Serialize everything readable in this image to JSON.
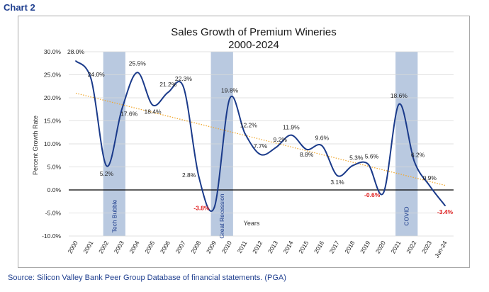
{
  "page_label": "Chart 2",
  "source_note": "Source: Silicon Valley Bank Peer Group Database of financial statements. (PGA)",
  "chart_data": {
    "type": "line",
    "title": "Sales Growth of Premium Wineries",
    "subtitle": "2000-2024",
    "xlabel": "Years",
    "ylabel": "Percent Growth Rate",
    "ylim": [
      -10,
      30
    ],
    "yticks": [
      "-10.0%",
      "-5.0%",
      "0.0%",
      "5.0%",
      "10.0%",
      "15.0%",
      "20.0%",
      "25.0%",
      "30.0%"
    ],
    "ytick_values": [
      -10,
      -5,
      0,
      5,
      10,
      15,
      20,
      25,
      30
    ],
    "categories": [
      "2000",
      "2001",
      "2002",
      "2003",
      "2004",
      "2005",
      "2006",
      "2007",
      "2008",
      "2009",
      "2010",
      "2011",
      "2012",
      "2013",
      "2014",
      "2015",
      "2016",
      "2017",
      "2018",
      "2019",
      "2020",
      "2021",
      "2022",
      "2023",
      "Jun-24"
    ],
    "series": [
      {
        "name": "Sales Growth",
        "color": "#1a3a8a",
        "values": [
          28.0,
          24.0,
          5.2,
          17.6,
          25.5,
          18.4,
          21.2,
          22.3,
          2.8,
          -3.8,
          19.8,
          12.2,
          7.7,
          9.2,
          11.9,
          8.8,
          9.6,
          3.1,
          5.3,
          5.6,
          -0.6,
          18.6,
          6.2,
          0.9,
          -3.4
        ]
      }
    ],
    "data_labels": [
      "28.0%",
      "24.0%",
      "5.2%",
      "17.6%",
      "25.5%",
      "18.4%",
      "21.2%",
      "22.3%",
      "2.8%",
      "-3.8%",
      "19.8%",
      "12.2%",
      "7.7%",
      "9.2%",
      "11.9%",
      "8.8%",
      "9.6%",
      "3.1%",
      "5.3%",
      "5.6%",
      "-0.6%",
      "18.6%",
      "6.2%",
      "0.9%",
      "-3.4%"
    ],
    "negative_label_color": "#e02020",
    "trendline": {
      "color": "#f0a830",
      "start": 21,
      "end": 1
    },
    "recession_bands": [
      {
        "label": "Tech Bubble",
        "start_index": 2,
        "end_index": 3
      },
      {
        "label": "Great Recession",
        "start_index": 9,
        "end_index": 10
      },
      {
        "label": "COVID",
        "start_index": 21,
        "end_index": 22
      }
    ],
    "band_color": "#b9c9e0",
    "grid": true,
    "legend": "none"
  }
}
